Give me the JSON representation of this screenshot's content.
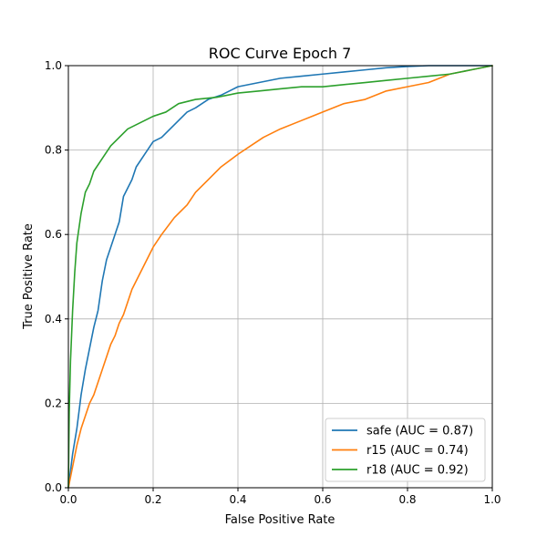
{
  "chart_data": {
    "type": "line",
    "title": "ROC Curve Epoch 7",
    "xlabel": "False Positive Rate",
    "ylabel": "True Positive Rate",
    "xlim": [
      0.0,
      1.0
    ],
    "ylim": [
      0.0,
      1.0
    ],
    "x_ticks": [
      "0.0",
      "0.2",
      "0.4",
      "0.6",
      "0.8",
      "1.0"
    ],
    "y_ticks": [
      "0.0",
      "0.2",
      "0.4",
      "0.6",
      "0.8",
      "1.0"
    ],
    "grid": true,
    "legend_position": "lower-right",
    "series": [
      {
        "name": "safe (AUC = 0.87)",
        "color": "#1f77b4",
        "x": [
          0.0,
          0.005,
          0.01,
          0.02,
          0.03,
          0.04,
          0.05,
          0.06,
          0.07,
          0.08,
          0.09,
          0.1,
          0.12,
          0.13,
          0.14,
          0.15,
          0.16,
          0.18,
          0.2,
          0.22,
          0.24,
          0.26,
          0.28,
          0.3,
          0.33,
          0.36,
          0.4,
          0.45,
          0.5,
          0.55,
          0.6,
          0.65,
          0.7,
          0.75,
          0.8,
          0.85,
          0.9,
          0.95,
          1.0
        ],
        "y": [
          0.0,
          0.04,
          0.08,
          0.14,
          0.22,
          0.28,
          0.33,
          0.38,
          0.42,
          0.49,
          0.54,
          0.57,
          0.63,
          0.69,
          0.71,
          0.73,
          0.76,
          0.79,
          0.82,
          0.83,
          0.85,
          0.87,
          0.89,
          0.9,
          0.92,
          0.93,
          0.95,
          0.96,
          0.97,
          0.975,
          0.98,
          0.985,
          0.99,
          0.995,
          0.998,
          1.0,
          1.0,
          1.0,
          1.0
        ]
      },
      {
        "name": "r15 (AUC = 0.74)",
        "color": "#ff7f0e",
        "x": [
          0.0,
          0.01,
          0.02,
          0.03,
          0.04,
          0.05,
          0.06,
          0.07,
          0.08,
          0.09,
          0.1,
          0.11,
          0.12,
          0.13,
          0.14,
          0.15,
          0.16,
          0.18,
          0.2,
          0.22,
          0.25,
          0.28,
          0.3,
          0.33,
          0.36,
          0.4,
          0.43,
          0.46,
          0.5,
          0.55,
          0.6,
          0.65,
          0.7,
          0.75,
          0.8,
          0.85,
          0.9,
          0.95,
          1.0
        ],
        "y": [
          0.0,
          0.05,
          0.1,
          0.14,
          0.17,
          0.2,
          0.22,
          0.25,
          0.28,
          0.31,
          0.34,
          0.36,
          0.39,
          0.41,
          0.44,
          0.47,
          0.49,
          0.53,
          0.57,
          0.6,
          0.64,
          0.67,
          0.7,
          0.73,
          0.76,
          0.79,
          0.81,
          0.83,
          0.85,
          0.87,
          0.89,
          0.91,
          0.92,
          0.94,
          0.95,
          0.96,
          0.98,
          0.99,
          1.0
        ]
      },
      {
        "name": "r18 (AUC = 0.92)",
        "color": "#2ca02c",
        "x": [
          0.0,
          0.002,
          0.005,
          0.01,
          0.015,
          0.02,
          0.03,
          0.04,
          0.05,
          0.06,
          0.08,
          0.1,
          0.12,
          0.14,
          0.16,
          0.18,
          0.2,
          0.23,
          0.26,
          0.3,
          0.35,
          0.4,
          0.45,
          0.5,
          0.55,
          0.6,
          0.65,
          0.7,
          0.75,
          0.8,
          0.85,
          0.9,
          0.95,
          1.0
        ],
        "y": [
          0.0,
          0.18,
          0.3,
          0.42,
          0.51,
          0.58,
          0.65,
          0.7,
          0.72,
          0.75,
          0.78,
          0.81,
          0.83,
          0.85,
          0.86,
          0.87,
          0.88,
          0.89,
          0.91,
          0.92,
          0.925,
          0.935,
          0.94,
          0.945,
          0.95,
          0.95,
          0.955,
          0.96,
          0.965,
          0.97,
          0.975,
          0.98,
          0.99,
          1.0
        ]
      }
    ]
  }
}
